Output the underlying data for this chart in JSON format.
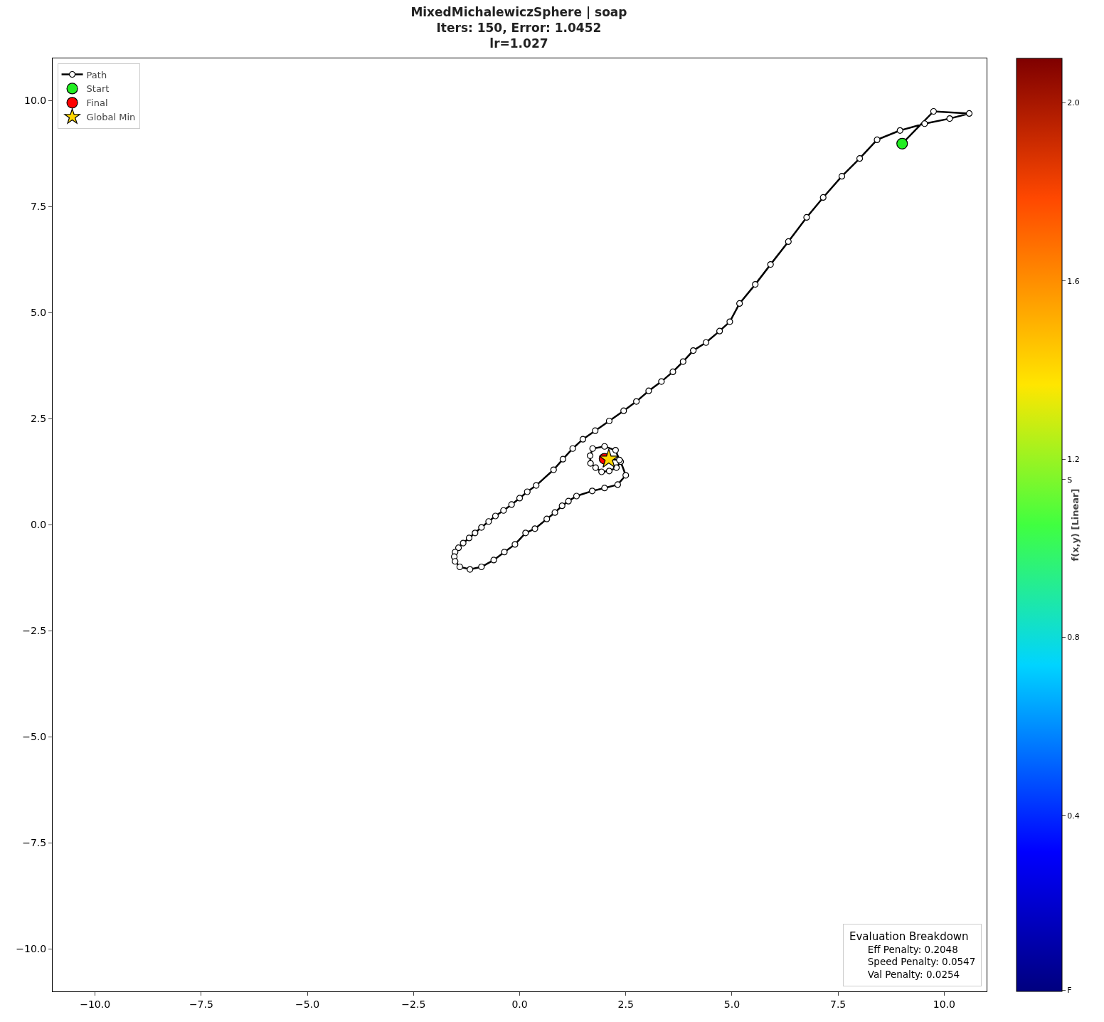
{
  "chart_data": {
    "type": "line",
    "title": "MixedMichalewiczSphere | soap\nIters: 150, Error: 1.0452\nlr=1.027",
    "clabel": "f(x,y) [Linear]",
    "clim": [
      0.005,
      2.1
    ],
    "cticks": [
      {
        "value": 0.008,
        "label": "F"
      },
      0.4,
      0.8,
      {
        "value": 1.154,
        "label": "S"
      },
      1.2,
      1.6,
      {
        "value": 2,
        "label": "2.0"
      }
    ],
    "xlim": [
      -11,
      11
    ],
    "ylim": [
      -11,
      11
    ],
    "xticks": [
      {
        "value": -10,
        "label": "−10.0"
      },
      {
        "value": -7.5,
        "label": "−7.5"
      },
      {
        "value": -5,
        "label": "−5.0"
      },
      {
        "value": -2.5,
        "label": "−2.5"
      },
      {
        "value": 0,
        "label": "0.0"
      },
      2.5,
      {
        "value": 5,
        "label": "5.0"
      },
      7.5,
      {
        "value": 10,
        "label": "10.0"
      }
    ],
    "yticks": [
      {
        "value": -10,
        "label": "−10.0"
      },
      {
        "value": -7.5,
        "label": "−7.5"
      },
      {
        "value": -5,
        "label": "−5.0"
      },
      {
        "value": -2.5,
        "label": "−2.5"
      },
      {
        "value": 0,
        "label": "0.0"
      },
      2.5,
      {
        "value": 5,
        "label": "5.0"
      },
      7.5,
      {
        "value": 10,
        "label": "10.0"
      }
    ],
    "grid": false,
    "legend": "top left",
    "annotations": [
      "Evaluation Breakdown",
      "Eff Penalty: 0.2048",
      "Speed Penalty: 0.0547",
      "Val Penalty: 0.0254"
    ],
    "series": [
      {
        "name": "Path",
        "color": "#000000",
        "marker": "circle",
        "x": [
          9.01,
          9.75,
          10.59,
          10.13,
          9.54,
          8.96,
          8.42,
          8.01,
          7.59,
          7.15,
          6.76,
          6.33,
          5.91,
          5.55,
          5.18,
          4.95,
          4.71,
          4.39,
          4.09,
          3.85,
          3.61,
          3.34,
          3.04,
          2.75,
          2.45,
          2.11,
          1.78,
          1.49,
          1.25,
          1.02,
          0.8,
          0.39,
          0.18,
          0.0,
          -0.19,
          -0.38,
          -0.57,
          -0.73,
          -0.9,
          -1.05,
          -1.19,
          -1.33,
          -1.44,
          -1.52,
          -1.54,
          -1.52,
          -1.41,
          -1.17,
          -0.9,
          -0.61,
          -0.36,
          -0.11,
          0.14,
          0.36,
          0.64,
          0.83,
          1.0,
          1.15,
          1.34,
          1.71,
          2.0,
          2.31,
          2.5,
          2.38,
          2.28,
          2.11,
          1.93,
          1.79,
          1.67,
          1.66,
          1.72,
          2.0,
          2.26,
          2.35,
          2.0
        ],
        "values": [
          8.99,
          9.75,
          9.7,
          9.58,
          9.46,
          9.3,
          9.08,
          8.64,
          8.22,
          7.72,
          7.25,
          6.68,
          6.14,
          5.67,
          5.22,
          4.79,
          4.57,
          4.3,
          4.11,
          3.85,
          3.61,
          3.38,
          3.16,
          2.91,
          2.69,
          2.45,
          2.22,
          2.02,
          1.8,
          1.55,
          1.3,
          0.93,
          0.78,
          0.63,
          0.48,
          0.34,
          0.21,
          0.08,
          -0.06,
          -0.19,
          -0.31,
          -0.43,
          -0.54,
          -0.64,
          -0.75,
          -0.86,
          -0.99,
          -1.05,
          -0.99,
          -0.83,
          -0.64,
          -0.46,
          -0.19,
          -0.09,
          0.14,
          0.29,
          0.45,
          0.56,
          0.68,
          0.8,
          0.87,
          0.95,
          1.17,
          1.49,
          1.35,
          1.27,
          1.25,
          1.35,
          1.45,
          1.63,
          1.8,
          1.85,
          1.76,
          1.53,
          1.56
        ]
      },
      {
        "name": "Start",
        "type": "scatter",
        "color": "#22ee22",
        "marker": "circle",
        "x": [
          9.01
        ],
        "values": [
          8.99
        ]
      },
      {
        "name": "Final",
        "type": "scatter",
        "color": "#ff0000",
        "marker": "circle",
        "x": [
          2.0
        ],
        "values": [
          1.56
        ]
      },
      {
        "name": "Global Min",
        "type": "scatter",
        "color": "#ffd700",
        "marker": "star",
        "x": [
          2.1
        ],
        "values": [
          1.55
        ]
      }
    ]
  }
}
